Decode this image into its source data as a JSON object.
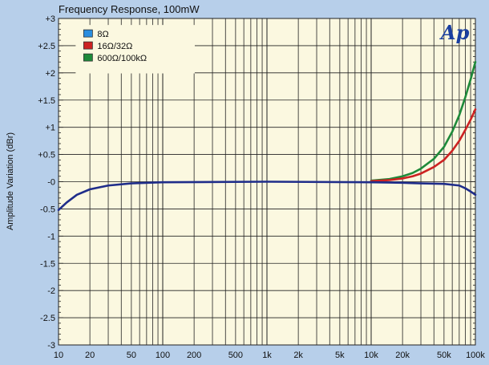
{
  "chart_data": {
    "type": "line",
    "title": "Frequency Response, 100mW",
    "xlabel": "",
    "ylabel": "Amplitude Variation (dBr)",
    "x_scale": "log",
    "xlim": [
      10,
      100000
    ],
    "ylim": [
      -3,
      3
    ],
    "grid": true,
    "legend_position": "top-left",
    "x_ticks": [
      10,
      20,
      50,
      100,
      200,
      500,
      1000,
      2000,
      5000,
      10000,
      20000,
      50000,
      100000
    ],
    "x_tick_labels": [
      "10",
      "20",
      "50",
      "100",
      "200",
      "500",
      "1k",
      "2k",
      "5k",
      "10k",
      "20k",
      "50k",
      "100k"
    ],
    "y_ticks": [
      3,
      2.5,
      2,
      1.5,
      1,
      0.5,
      0,
      -0.5,
      -1,
      -1.5,
      -2,
      -2.5,
      -3
    ],
    "y_tick_labels": [
      "+3",
      "+2.5",
      "+2",
      "+1.5",
      "+1",
      "+0.5",
      "-0",
      "-0.5",
      "-1",
      "-1.5",
      "-2",
      "-2.5",
      "-3"
    ],
    "series": [
      {
        "name": "8Ω",
        "color": "#1f2d8a",
        "x": [
          10,
          12,
          15,
          20,
          30,
          50,
          100,
          1000,
          10000,
          20000,
          30000,
          50000,
          70000,
          80000,
          90000,
          100000
        ],
        "y": [
          -0.52,
          -0.38,
          -0.24,
          -0.14,
          -0.07,
          -0.03,
          -0.01,
          0,
          -0.01,
          -0.02,
          -0.03,
          -0.04,
          -0.07,
          -0.12,
          -0.18,
          -0.24
        ]
      },
      {
        "name": "16Ω/32Ω",
        "color": "#cc2222",
        "x": [
          10000,
          15000,
          20000,
          25000,
          30000,
          40000,
          50000,
          60000,
          70000,
          80000,
          90000,
          100000
        ],
        "y": [
          0.01,
          0.03,
          0.06,
          0.1,
          0.15,
          0.27,
          0.4,
          0.57,
          0.75,
          0.95,
          1.14,
          1.33
        ]
      },
      {
        "name": "600Ω/100kΩ",
        "color": "#1e8a3a",
        "x": [
          10000,
          15000,
          20000,
          25000,
          30000,
          40000,
          50000,
          60000,
          70000,
          80000,
          90000,
          100000
        ],
        "y": [
          0.02,
          0.05,
          0.1,
          0.16,
          0.24,
          0.42,
          0.64,
          0.92,
          1.22,
          1.55,
          1.88,
          2.2
        ]
      }
    ]
  },
  "logo": {
    "text": "Ap",
    "color": "#1a3fa0"
  },
  "colors": {
    "background": "#b7cfea",
    "plot_background": "#fbf8e0",
    "grid": "#222222"
  }
}
